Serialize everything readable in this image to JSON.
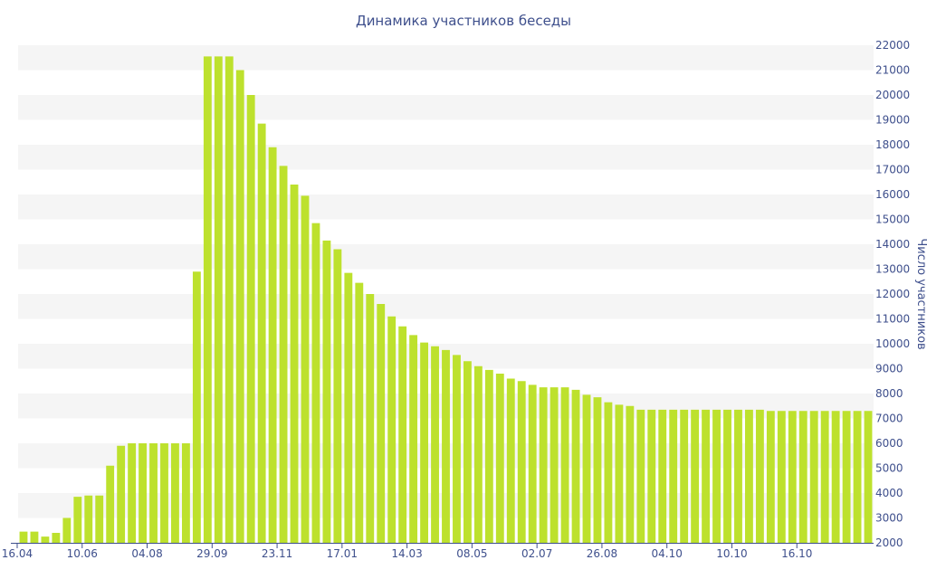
{
  "chart_data": {
    "type": "bar",
    "title": "Динамика участников беседы",
    "ylabel": "Число участников",
    "xlabel": "",
    "ylim": [
      2000,
      22000
    ],
    "y_ticks": [
      2000,
      3000,
      4000,
      5000,
      6000,
      7000,
      8000,
      9000,
      10000,
      11000,
      12000,
      13000,
      14000,
      15000,
      16000,
      17000,
      18000,
      19000,
      20000,
      21000,
      22000
    ],
    "x_tick_labels": [
      "16.04",
      "10.06",
      "04.08",
      "29.09",
      "23.11",
      "17.01",
      "14.03",
      "08.05",
      "02.07",
      "26.08",
      "04.10",
      "10.10",
      "16.10"
    ],
    "grid": "horizontal alternating bands",
    "legend": "none",
    "bar_color": "#bde12d",
    "band_color": "#f5f5f5",
    "text_color": "#3e4f8c",
    "series": [
      {
        "values": [
          2450,
          2450,
          2250,
          2400,
          3000,
          3850,
          3900,
          3900,
          5100,
          5900,
          6000,
          6000,
          6000,
          6000,
          6000,
          6000,
          12900,
          21550,
          21550,
          21550,
          21000,
          20000,
          18850,
          17900,
          17150,
          16400,
          15950,
          14850,
          14150,
          13800,
          12850,
          12450,
          12000,
          11600,
          11100,
          10700,
          10350,
          10050,
          9900,
          9750,
          9550,
          9300,
          9100,
          8950,
          8800,
          8600,
          8500,
          8350,
          8250,
          8250,
          8250,
          8150,
          7950,
          7850,
          7650,
          7550,
          7500,
          7350,
          7350,
          7350,
          7350,
          7350,
          7350,
          7350,
          7350,
          7350,
          7350,
          7350,
          7350,
          7300,
          7300,
          7300,
          7300,
          7300,
          7300,
          7300,
          7300,
          7300,
          7300
        ]
      }
    ]
  }
}
